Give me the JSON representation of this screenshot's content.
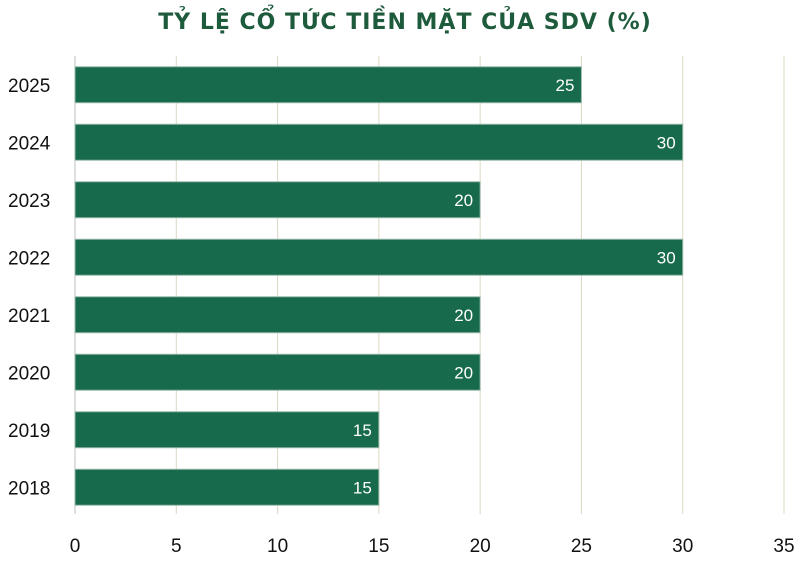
{
  "chart_data": {
    "type": "bar",
    "orientation": "horizontal",
    "title": "TỶ LỆ CỔ TỨC TIỀN MẶT CỦA SDV (%)",
    "categories": [
      "2025",
      "2024",
      "2023",
      "2022",
      "2021",
      "2020",
      "2019",
      "2018"
    ],
    "values": [
      25,
      30,
      20,
      30,
      20,
      20,
      15,
      15
    ],
    "xlim": [
      0,
      35
    ],
    "xticks": [
      0,
      5,
      10,
      15,
      20,
      25,
      30,
      35
    ],
    "grid": true,
    "data_labels": true,
    "bar_color": "#176b4c",
    "grid_color": "#ddd8c4",
    "title_color": "#1e5b3c"
  }
}
